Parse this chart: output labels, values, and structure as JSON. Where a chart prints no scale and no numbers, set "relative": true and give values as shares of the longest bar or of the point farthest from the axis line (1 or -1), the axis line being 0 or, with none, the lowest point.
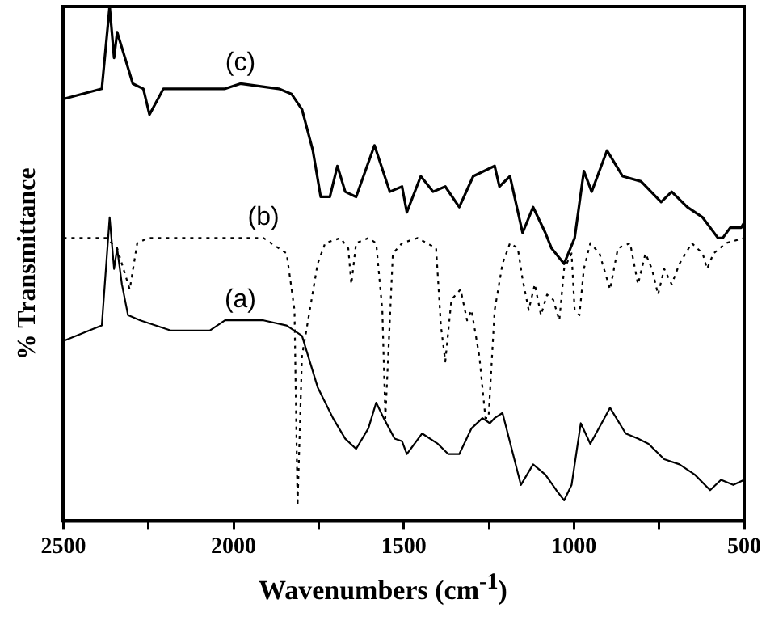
{
  "chart_data": {
    "type": "line",
    "xlabel": "Wavenumbers (cm$^{-1}$)",
    "ylabel": "% Transmittance",
    "relative": true,
    "xlim": [
      2500,
      500
    ],
    "xticks": [
      2500,
      {
        "value": 2250,
        "label": null
      },
      2000,
      {
        "value": 1750,
        "label": null
      },
      1500,
      {
        "value": 1250,
        "label": null
      },
      1000,
      {
        "value": 750,
        "label": null
      },
      500
    ],
    "grid": false,
    "legend": false,
    "marker": "none",
    "series": [
      {
        "name": "(c)",
        "color": "#000000",
        "line_style": "solid",
        "x": [
          2500,
          2387,
          2364,
          2351,
          2342,
          2328,
          2296,
          2265,
          2247,
          2206,
          2093,
          2025,
          1980,
          1867,
          1830,
          1799,
          1767,
          1744,
          1717,
          1695,
          1672,
          1640,
          1586,
          1541,
          1505,
          1491,
          1450,
          1414,
          1378,
          1337,
          1296,
          1233,
          1219,
          1188,
          1151,
          1120,
          1084,
          1066,
          1029,
          998,
          971,
          948,
          903,
          857,
          803,
          744,
          713,
          667,
          622,
          577,
          563,
          541,
          509,
          500
        ],
        "values": [
          0.82,
          0.84,
          1.0,
          0.9,
          0.95,
          0.92,
          0.85,
          0.84,
          0.79,
          0.84,
          0.84,
          0.84,
          0.85,
          0.84,
          0.83,
          0.8,
          0.72,
          0.63,
          0.63,
          0.69,
          0.64,
          0.63,
          0.73,
          0.64,
          0.65,
          0.6,
          0.67,
          0.64,
          0.65,
          0.61,
          0.67,
          0.69,
          0.65,
          0.67,
          0.56,
          0.61,
          0.56,
          0.53,
          0.5,
          0.55,
          0.68,
          0.64,
          0.72,
          0.67,
          0.66,
          0.62,
          0.64,
          0.61,
          0.59,
          0.55,
          0.55,
          0.57,
          0.57,
          0.58
        ]
      },
      {
        "name": "(b)",
        "color": "#000000",
        "line_style": "dotted",
        "x": [
          2500,
          2373,
          2342,
          2305,
          2283,
          2251,
          1912,
          1867,
          1844,
          1821,
          1812,
          1799,
          1753,
          1731,
          1686,
          1663,
          1654,
          1640,
          1604,
          1581,
          1563,
          1554,
          1532,
          1505,
          1459,
          1405,
          1391,
          1378,
          1360,
          1333,
          1314,
          1301,
          1278,
          1260,
          1251,
          1233,
          1210,
          1188,
          1165,
          1151,
          1133,
          1115,
          1097,
          1079,
          1061,
          1043,
          1029,
          1007,
          998,
          984,
          971,
          952,
          925,
          894,
          871,
          835,
          812,
          790,
          771,
          753,
          735,
          713,
          690,
          654,
          622,
          609,
          590,
          554,
          500
        ],
        "values": [
          0.55,
          0.55,
          0.53,
          0.45,
          0.54,
          0.55,
          0.55,
          0.53,
          0.52,
          0.41,
          0.03,
          0.32,
          0.5,
          0.54,
          0.55,
          0.53,
          0.46,
          0.54,
          0.55,
          0.54,
          0.41,
          0.2,
          0.52,
          0.54,
          0.55,
          0.53,
          0.38,
          0.31,
          0.43,
          0.45,
          0.39,
          0.41,
          0.32,
          0.2,
          0.2,
          0.41,
          0.5,
          0.54,
          0.53,
          0.47,
          0.41,
          0.46,
          0.4,
          0.44,
          0.43,
          0.39,
          0.49,
          0.52,
          0.41,
          0.4,
          0.49,
          0.54,
          0.52,
          0.45,
          0.53,
          0.54,
          0.46,
          0.52,
          0.49,
          0.44,
          0.49,
          0.46,
          0.5,
          0.54,
          0.52,
          0.49,
          0.52,
          0.54,
          0.55
        ]
      },
      {
        "name": "(a)",
        "color": "#000000",
        "line_style": "solid",
        "x": [
          2500,
          2387,
          2364,
          2351,
          2342,
          2328,
          2310,
          2274,
          2183,
          2138,
          2070,
          2025,
          1980,
          1912,
          1844,
          1799,
          1776,
          1753,
          1708,
          1672,
          1640,
          1604,
          1581,
          1559,
          1527,
          1505,
          1491,
          1446,
          1400,
          1369,
          1337,
          1301,
          1269,
          1247,
          1233,
          1210,
          1179,
          1156,
          1120,
          1084,
          1052,
          1029,
          1007,
          980,
          952,
          894,
          848,
          812,
          781,
          735,
          690,
          645,
          600,
          568,
          532,
          500
        ],
        "values": [
          0.35,
          0.38,
          0.59,
          0.49,
          0.53,
          0.46,
          0.4,
          0.39,
          0.37,
          0.37,
          0.37,
          0.39,
          0.39,
          0.39,
          0.38,
          0.36,
          0.31,
          0.26,
          0.2,
          0.16,
          0.14,
          0.18,
          0.23,
          0.2,
          0.16,
          0.155,
          0.13,
          0.17,
          0.15,
          0.13,
          0.13,
          0.18,
          0.2,
          0.19,
          0.2,
          0.21,
          0.13,
          0.07,
          0.11,
          0.09,
          0.06,
          0.04,
          0.07,
          0.19,
          0.15,
          0.22,
          0.17,
          0.16,
          0.15,
          0.12,
          0.11,
          0.09,
          0.06,
          0.08,
          0.07,
          0.08
        ]
      }
    ]
  }
}
